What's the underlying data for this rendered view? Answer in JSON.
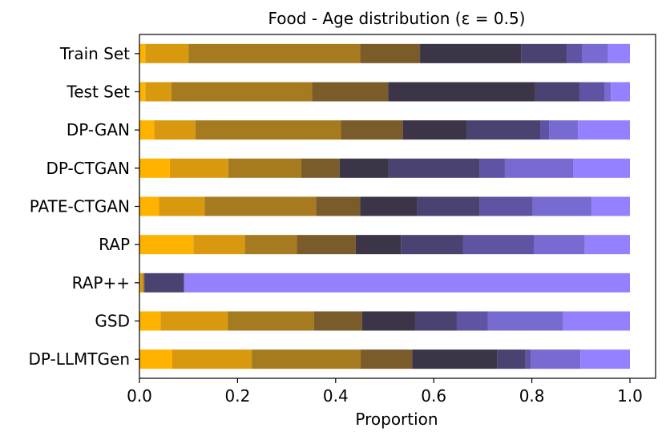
{
  "chart_data": {
    "type": "bar",
    "orientation": "horizontal",
    "stacked": true,
    "title": "Food - Age distribution (ε = 0.5)",
    "xlabel": "Proportion",
    "ylabel": "",
    "xlim": [
      0,
      1
    ],
    "xticks": [
      0.0,
      0.2,
      0.4,
      0.6,
      0.8,
      1.0
    ],
    "xtick_labels": [
      "0.0",
      "0.2",
      "0.4",
      "0.6",
      "0.8",
      "1.0"
    ],
    "grid": false,
    "legend": "none",
    "categories": [
      "Train Set",
      "Test Set",
      "DP-GAN",
      "DP-CTGAN",
      "PATE-CTGAN",
      "RAP",
      "RAP++",
      "GSD",
      "DP-LLMTGen"
    ],
    "segment_colors": [
      "#FFB300",
      "#D9990E",
      "#A67B1F",
      "#7A5C2B",
      "#3B3547",
      "#4A4270",
      "#5E54A3",
      "#776BD1",
      "#9381FF"
    ],
    "values": [
      [
        0.012,
        0.088,
        0.35,
        0.122,
        0.206,
        0.093,
        0.032,
        0.052,
        0.045
      ],
      [
        0.012,
        0.053,
        0.287,
        0.155,
        0.3,
        0.09,
        0.052,
        0.012,
        0.039
      ],
      [
        0.03,
        0.084,
        0.297,
        0.126,
        0.131,
        0.149,
        0.018,
        0.059,
        0.106
      ],
      [
        0.062,
        0.119,
        0.149,
        0.078,
        0.1,
        0.186,
        0.051,
        0.139,
        0.116
      ],
      [
        0.04,
        0.093,
        0.227,
        0.09,
        0.116,
        0.128,
        0.108,
        0.12,
        0.078
      ],
      [
        0.11,
        0.105,
        0.106,
        0.12,
        0.092,
        0.127,
        0.145,
        0.103,
        0.092
      ],
      [
        0.002,
        0.005,
        0.003,
        0.0,
        0.0,
        0.081,
        0.0,
        0.0,
        0.909
      ],
      [
        0.043,
        0.137,
        0.176,
        0.098,
        0.108,
        0.085,
        0.063,
        0.154,
        0.136
      ],
      [
        0.067,
        0.162,
        0.222,
        0.105,
        0.173,
        0.058,
        0.011,
        0.101,
        0.101
      ]
    ]
  }
}
